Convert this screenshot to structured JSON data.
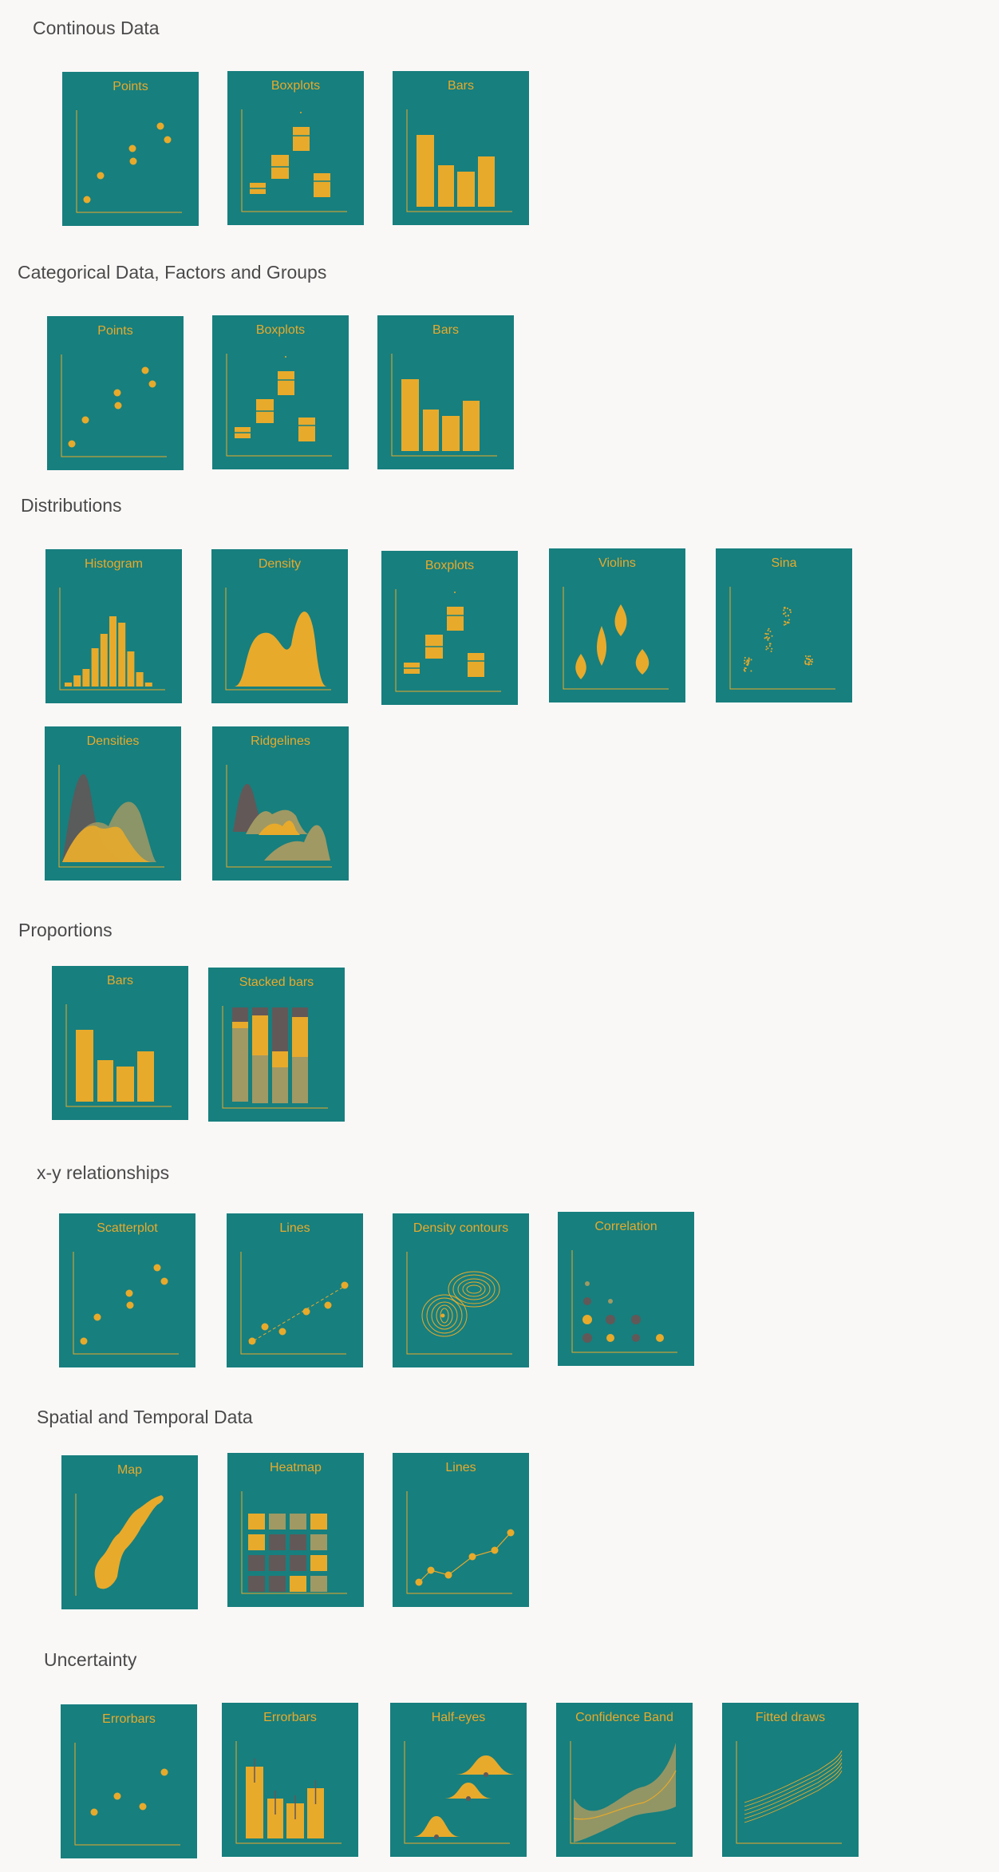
{
  "colors": {
    "background": "#faf8f7",
    "tile": "#177f7e",
    "accent": "#e8aa2b",
    "muted": "#a09963",
    "dark": "#625858",
    "text": "#4a4a4a"
  },
  "sections": [
    {
      "title": "Continous Data",
      "tiles": [
        {
          "title": "Points",
          "kind": "points"
        },
        {
          "title": "Boxplots",
          "kind": "boxplots"
        },
        {
          "title": "Bars",
          "kind": "bars"
        }
      ]
    },
    {
      "title": "Categorical Data, Factors and Groups",
      "tiles": [
        {
          "title": "Points",
          "kind": "points"
        },
        {
          "title": "Boxplots",
          "kind": "boxplots"
        },
        {
          "title": "Bars",
          "kind": "bars"
        }
      ]
    },
    {
      "title": "Distributions",
      "tiles": [
        {
          "title": "Histogram",
          "kind": "histogram"
        },
        {
          "title": "Density",
          "kind": "density"
        },
        {
          "title": "Boxplots",
          "kind": "boxplots"
        },
        {
          "title": "Violins",
          "kind": "violins"
        },
        {
          "title": "Sina",
          "kind": "sina"
        },
        {
          "title": "Densities",
          "kind": "densities"
        },
        {
          "title": "Ridgelines",
          "kind": "ridgelines"
        }
      ]
    },
    {
      "title": "Proportions",
      "tiles": [
        {
          "title": "Bars",
          "kind": "bars2"
        },
        {
          "title": "Stacked bars",
          "kind": "stacked"
        }
      ]
    },
    {
      "title": "x-y relationships",
      "tiles": [
        {
          "title": "Scatterplot",
          "kind": "scatter"
        },
        {
          "title": "Lines",
          "kind": "lines"
        },
        {
          "title": "Density contours",
          "kind": "contours"
        },
        {
          "title": "Correlation",
          "kind": "correlation"
        }
      ]
    },
    {
      "title": "Spatial and Temporal Data",
      "tiles": [
        {
          "title": "Map",
          "kind": "map"
        },
        {
          "title": "Heatmap",
          "kind": "heatmap"
        },
        {
          "title": "Lines",
          "kind": "timeline"
        }
      ]
    },
    {
      "title": "Uncertainty",
      "tiles": [
        {
          "title": "Errorbars",
          "kind": "errorpoints"
        },
        {
          "title": "Errorbars",
          "kind": "errorbars"
        },
        {
          "title": "Half-eyes",
          "kind": "halfeyes"
        },
        {
          "title": "Confidence Band",
          "kind": "band"
        },
        {
          "title": "Fitted draws",
          "kind": "draws"
        }
      ]
    }
  ]
}
